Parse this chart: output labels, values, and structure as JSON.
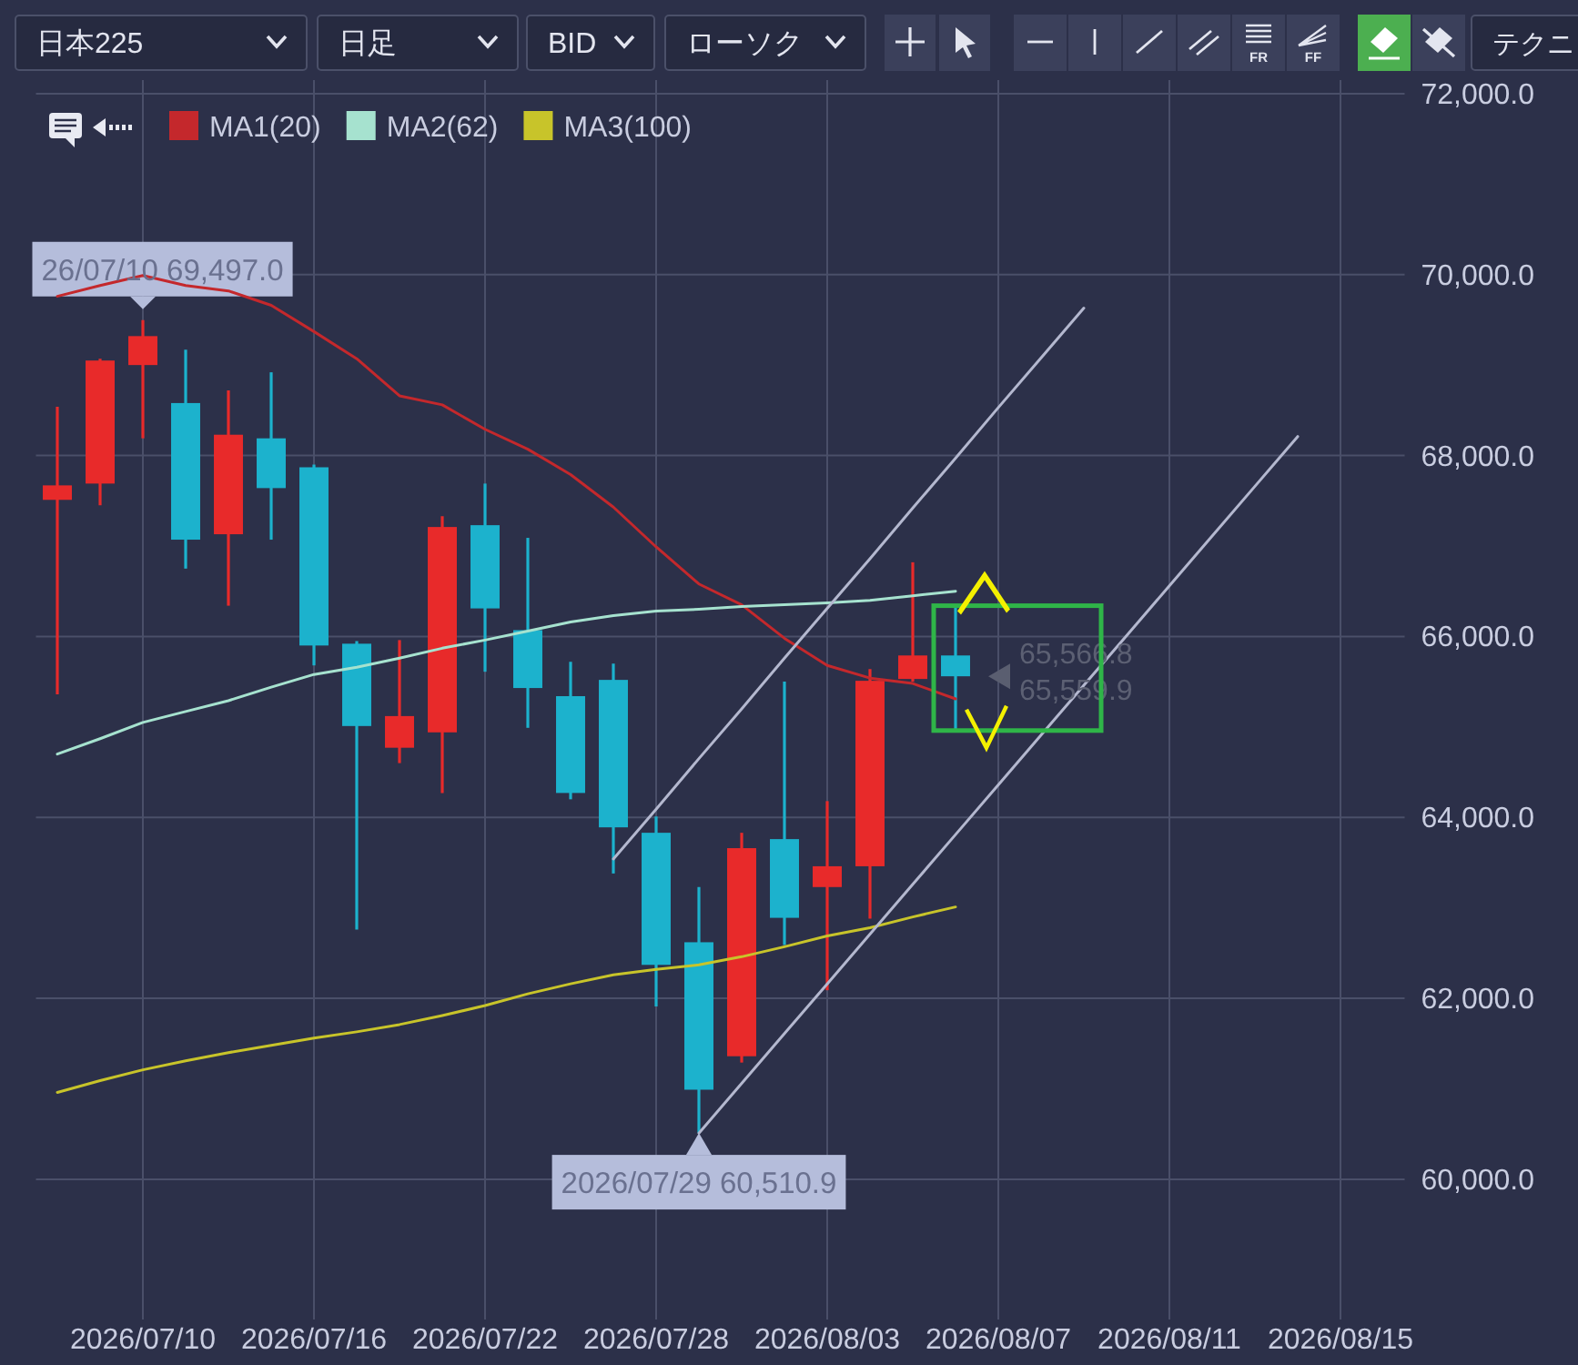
{
  "chart_data": {
    "type": "candlestick",
    "title": "日本225",
    "categories": [
      null,
      null,
      "2026/07/10",
      null,
      null,
      null,
      "2026/07/16",
      null,
      null,
      null,
      "2026/07/22",
      null,
      null,
      null,
      "2026/07/28",
      null,
      null,
      null,
      "2026/08/03",
      null,
      null,
      null,
      "2026/08/07",
      null,
      null,
      null,
      "2026/08/11",
      null,
      null,
      null,
      "2026/08/15",
      null
    ],
    "ohlc": [
      [
        67510,
        68540,
        65360,
        67670
      ],
      [
        67690,
        69070,
        67450,
        69050
      ],
      [
        69000,
        69497,
        68190,
        69320
      ],
      [
        68580,
        69170,
        66750,
        67070
      ],
      [
        67130,
        68720,
        66340,
        68230
      ],
      [
        68190,
        68920,
        67070,
        67640
      ],
      [
        67870,
        67900,
        65680,
        65900
      ],
      [
        65920,
        65950,
        62760,
        65010
      ],
      [
        64770,
        65960,
        64600,
        65120
      ],
      [
        64940,
        67330,
        64270,
        67210
      ],
      [
        67230,
        67690,
        65610,
        66310
      ],
      [
        66070,
        67090,
        64990,
        65430
      ],
      [
        65340,
        65720,
        64200,
        64270
      ],
      [
        65520,
        65700,
        63380,
        63890
      ],
      [
        63830,
        64010,
        61910,
        62370
      ],
      [
        62620,
        63230,
        60510.9,
        60990
      ],
      [
        61360,
        63830,
        61290,
        63660
      ],
      [
        63760,
        65500,
        62590,
        62890
      ],
      [
        63230,
        64180,
        62090,
        63460
      ],
      [
        63460,
        65640,
        62880,
        65510
      ],
      [
        65530,
        66820,
        65500,
        65790
      ],
      [
        65790,
        66320,
        64940,
        65559.9
      ],
      null,
      null,
      null,
      null,
      null,
      null,
      null,
      null,
      null,
      null
    ],
    "colors": [
      "#e82a2a",
      "#e82a2a",
      "#e82a2a",
      "#1cb2cd",
      "#e82a2a",
      "#1cb2cd",
      "#1cb2cd",
      "#1cb2cd",
      "#e82a2a",
      "#e82a2a",
      "#1cb2cd",
      "#1cb2cd",
      "#1cb2cd",
      "#1cb2cd",
      "#1cb2cd",
      "#1cb2cd",
      "#e82a2a",
      "#1cb2cd",
      "#e82a2a",
      "#e82a2a",
      "#e82a2a",
      "#1cb2cd",
      null,
      null,
      null,
      null,
      null,
      null,
      null,
      null,
      null,
      null
    ],
    "series": [
      {
        "name": "MA1(20)",
        "type": "line",
        "color": "#c4282c",
        "values": [
          69760,
          69880,
          69990,
          69880,
          69820,
          69660,
          69370,
          69070,
          68660,
          68560,
          68290,
          68070,
          67790,
          67430,
          66990,
          66580,
          66350,
          65980,
          65680,
          65540,
          65480,
          65310,
          null,
          null,
          null,
          null,
          null,
          null,
          null,
          null,
          null,
          null
        ]
      },
      {
        "name": "MA2(62)",
        "type": "line",
        "color": "#a6e2cf",
        "values": [
          64700,
          64870,
          65050,
          65170,
          65290,
          65440,
          65580,
          65660,
          65760,
          65870,
          65960,
          66060,
          66160,
          66230,
          66280,
          66300,
          66330,
          66350,
          66370,
          66400,
          66450,
          66500,
          null,
          null,
          null,
          null,
          null,
          null,
          null,
          null,
          null,
          null
        ]
      },
      {
        "name": "MA3(100)",
        "type": "line",
        "color": "#c8c42a",
        "values": [
          60960,
          61090,
          61210,
          61310,
          61400,
          61480,
          61560,
          61630,
          61710,
          61810,
          61920,
          62050,
          62160,
          62260,
          62320,
          62370,
          62460,
          62570,
          62690,
          62780,
          62900,
          63010,
          null,
          null,
          null,
          null,
          null,
          null,
          null,
          null,
          null,
          null
        ]
      },
      {
        "type": "line",
        "color": "#b4b8cf",
        "values": [
          null,
          null,
          null,
          null,
          null,
          null,
          null,
          null,
          null,
          null,
          null,
          null,
          null,
          63540,
          64090,
          64650,
          65200,
          65760,
          66310,
          66860,
          67420,
          67970,
          68530,
          69080,
          69630,
          null,
          null,
          null,
          null,
          null,
          null,
          null
        ]
      },
      {
        "type": "line",
        "color": "#b4b8cf",
        "values": [
          null,
          null,
          null,
          null,
          null,
          null,
          null,
          null,
          null,
          null,
          null,
          null,
          null,
          null,
          null,
          60510,
          61060,
          61610,
          62160,
          62710,
          63260,
          63810,
          64360,
          64910,
          65460,
          66010,
          66560,
          67110,
          67660,
          68210,
          null,
          null
        ]
      }
    ],
    "ylim": [
      58450,
      72150
    ],
    "yticks": [
      {
        "value": 60000,
        "label": "60,000.0"
      },
      {
        "value": 62000,
        "label": "62,000.0"
      },
      {
        "value": 64000,
        "label": "64,000.0"
      },
      {
        "value": 66000,
        "label": "66,000.0"
      },
      {
        "value": 68000,
        "label": "68,000.0"
      },
      {
        "value": 70000,
        "label": "70,000.0"
      },
      {
        "value": 72000,
        "label": "72,000.0"
      }
    ],
    "grid": true,
    "legend": "top left",
    "annotations": [
      "日足",
      "BID",
      "ローソク",
      "FR",
      "FF",
      "テクニ",
      "65,566.8",
      "65,559.9",
      {
        "text": "26/07/10 69,497.0",
        "x": "2026/07/10",
        "y": 69497
      },
      {
        "text": "2026/07/29 60,510.9",
        "y": 60510.9
      }
    ]
  }
}
